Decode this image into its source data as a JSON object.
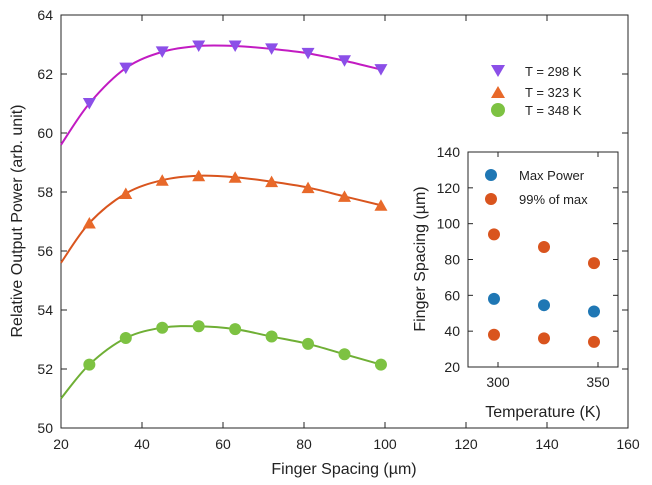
{
  "chart_data": [
    {
      "type": "scatter",
      "xlabel": "Finger Spacing (µm)",
      "ylabel": "Relative Output Power  (arb. unit)",
      "xlim": [
        20,
        160
      ],
      "ylim": [
        50,
        64
      ],
      "xticks": [
        20,
        40,
        60,
        80,
        100,
        120,
        140,
        160
      ],
      "yticks": [
        50,
        52,
        54,
        56,
        58,
        60,
        62,
        64
      ],
      "grid": false,
      "legend_position": "top-right",
      "series": [
        {
          "name": "T = 298 K",
          "marker": "triangle-down",
          "marker_color": "#8B4FE8",
          "line_color": "#C21BC2",
          "x": [
            27,
            36,
            45,
            54,
            63,
            72,
            81,
            90,
            99
          ],
          "y": [
            61.0,
            62.2,
            62.75,
            62.95,
            62.95,
            62.85,
            62.7,
            62.45,
            62.15
          ],
          "fit_x": [
            20,
            27,
            36,
            45,
            54,
            63,
            72,
            81,
            90,
            99
          ],
          "fit_y": [
            59.6,
            61.0,
            62.2,
            62.75,
            62.95,
            62.95,
            62.85,
            62.7,
            62.45,
            62.15
          ]
        },
        {
          "name": "T = 323 K",
          "marker": "triangle-up",
          "marker_color": "#E8692A",
          "line_color": "#D9551E",
          "x": [
            27,
            36,
            45,
            54,
            63,
            72,
            81,
            90,
            99
          ],
          "y": [
            56.95,
            57.95,
            58.4,
            58.55,
            58.5,
            58.35,
            58.15,
            57.85,
            57.55
          ],
          "fit_x": [
            20,
            27,
            36,
            45,
            54,
            63,
            72,
            81,
            90,
            99
          ],
          "fit_y": [
            55.6,
            56.95,
            57.95,
            58.4,
            58.55,
            58.5,
            58.35,
            58.15,
            57.85,
            57.55
          ]
        },
        {
          "name": "T = 348 K",
          "marker": "circle",
          "marker_color": "#7DC242",
          "line_color": "#6FAF35",
          "x": [
            27,
            36,
            45,
            54,
            63,
            72,
            81,
            90,
            99
          ],
          "y": [
            52.15,
            53.05,
            53.4,
            53.45,
            53.35,
            53.1,
            52.85,
            52.5,
            52.15
          ],
          "fit_x": [
            20,
            27,
            36,
            45,
            54,
            63,
            72,
            81,
            90,
            99
          ],
          "fit_y": [
            51.0,
            52.15,
            53.05,
            53.4,
            53.45,
            53.35,
            53.1,
            52.85,
            52.5,
            52.15
          ]
        }
      ]
    },
    {
      "type": "scatter",
      "xlabel": "Temperature (K)",
      "ylabel": "Finger Spacing (µm)",
      "xlim": [
        285,
        360
      ],
      "ylim": [
        20,
        140
      ],
      "xticks": [
        300,
        350
      ],
      "yticks": [
        20,
        40,
        60,
        80,
        100,
        120,
        140
      ],
      "grid": false,
      "legend_position": "top-right",
      "series": [
        {
          "name": "Max Power",
          "marker": "circle",
          "marker_color": "#1F77B4",
          "x": [
            298,
            323,
            348
          ],
          "y": [
            58,
            54.5,
            51
          ]
        },
        {
          "name": "99% of max",
          "marker": "circle",
          "marker_color": "#D9541E",
          "x": [
            298,
            323,
            348,
            298,
            323,
            348
          ],
          "y": [
            94,
            87,
            78,
            38,
            36,
            34
          ]
        }
      ]
    }
  ]
}
